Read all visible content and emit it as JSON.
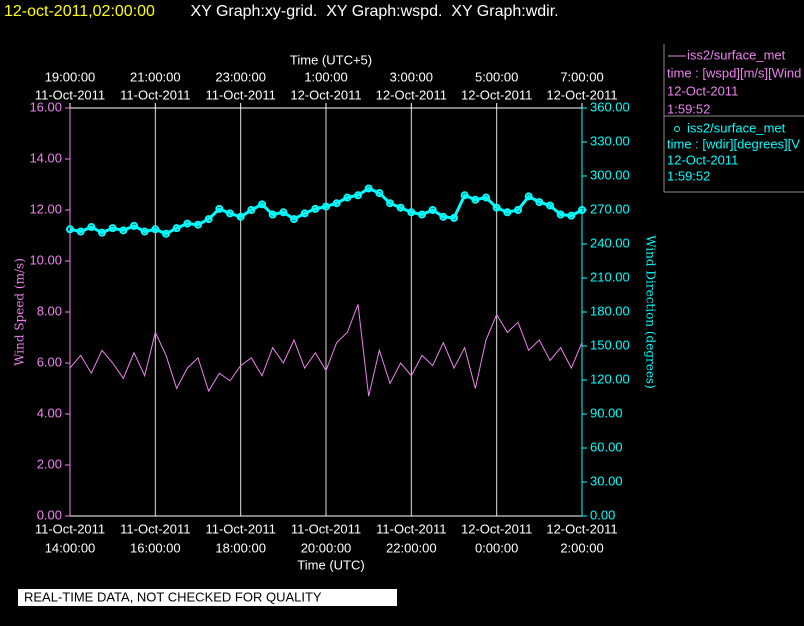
{
  "header": {
    "timestamp": "12-oct-2011,02:00:00",
    "graphs": " XY Graph:xy-grid.  XY Graph:wspd.  XY Graph:wdir."
  },
  "footer": "REAL-TIME DATA, NOT CHECKED FOR QUALITY",
  "chart_data": {
    "type": "line",
    "x_label": "Time (UTC)",
    "x2_label": "Time (UTC+5)",
    "y_label": "Wind Speed (m/s)",
    "y2_label": "Wind Direction (degrees)",
    "xlim": [
      "2011-10-11T14:00:00",
      "2011-10-12T02:00:00"
    ],
    "xticks": [
      {
        "value": "2011-10-11T14:00:00",
        "label": [
          "11-Oct-2011",
          "14:00:00"
        ]
      },
      {
        "value": "2011-10-11T16:00:00",
        "label": [
          "11-Oct-2011",
          "16:00:00"
        ]
      },
      {
        "value": "2011-10-11T18:00:00",
        "label": [
          "11-Oct-2011",
          "18:00:00"
        ]
      },
      {
        "value": "2011-10-11T20:00:00",
        "label": [
          "11-Oct-2011",
          "20:00:00"
        ]
      },
      {
        "value": "2011-10-11T22:00:00",
        "label": [
          "11-Oct-2011",
          "22:00:00"
        ]
      },
      {
        "value": "2011-10-12T00:00:00",
        "label": [
          "12-Oct-2011",
          "0:00:00"
        ]
      },
      {
        "value": "2011-10-12T02:00:00",
        "label": [
          "12-Oct-2011",
          "2:00:00"
        ]
      }
    ],
    "x2ticks": [
      {
        "value": "2011-10-11T14:00:00",
        "label": [
          "11-Oct-2011",
          "19:00:00"
        ]
      },
      {
        "value": "2011-10-11T16:00:00",
        "label": [
          "11-Oct-2011",
          "21:00:00"
        ]
      },
      {
        "value": "2011-10-11T18:00:00",
        "label": [
          "11-Oct-2011",
          "23:00:00"
        ]
      },
      {
        "value": "2011-10-11T20:00:00",
        "label": [
          "12-Oct-2011",
          "1:00:00"
        ]
      },
      {
        "value": "2011-10-11T22:00:00",
        "label": [
          "12-Oct-2011",
          "3:00:00"
        ]
      },
      {
        "value": "2011-10-12T00:00:00",
        "label": [
          "12-Oct-2011",
          "5:00:00"
        ]
      },
      {
        "value": "2011-10-12T02:00:00",
        "label": [
          "12-Oct-2011",
          "7:00:00"
        ]
      }
    ],
    "ylim": [
      0,
      16
    ],
    "yticks": [
      {
        "value": 0,
        "label": "0.00"
      },
      {
        "value": 2,
        "label": "2.00"
      },
      {
        "value": 4,
        "label": "4.00"
      },
      {
        "value": 6,
        "label": "6.00"
      },
      {
        "value": 8,
        "label": "8.00"
      },
      {
        "value": 10,
        "label": "10.00"
      },
      {
        "value": 12,
        "label": "12.00"
      },
      {
        "value": 14,
        "label": "14.00"
      },
      {
        "value": 16,
        "label": "16.00"
      }
    ],
    "y2lim": [
      0,
      360
    ],
    "y2ticks": [
      {
        "value": 0,
        "label": "0.00"
      },
      {
        "value": 30,
        "label": "30.00"
      },
      {
        "value": 60,
        "label": "60.00"
      },
      {
        "value": 90,
        "label": "90.00"
      },
      {
        "value": 120,
        "label": "120.00"
      },
      {
        "value": 150,
        "label": "150.00"
      },
      {
        "value": 180,
        "label": "180.00"
      },
      {
        "value": 210,
        "label": "210.00"
      },
      {
        "value": 240,
        "label": "240.00"
      },
      {
        "value": 270,
        "label": "270.00"
      },
      {
        "value": 300,
        "label": "300.00"
      },
      {
        "value": 330,
        "label": "330.00"
      },
      {
        "value": 360,
        "label": "360.00"
      }
    ],
    "grid": true,
    "x": [
      "2011-10-11T14:00:00",
      "2011-10-11T14:15:00",
      "2011-10-11T14:30:00",
      "2011-10-11T14:45:00",
      "2011-10-11T15:00:00",
      "2011-10-11T15:15:00",
      "2011-10-11T15:30:00",
      "2011-10-11T15:45:00",
      "2011-10-11T16:00:00",
      "2011-10-11T16:15:00",
      "2011-10-11T16:30:00",
      "2011-10-11T16:45:00",
      "2011-10-11T17:00:00",
      "2011-10-11T17:15:00",
      "2011-10-11T17:30:00",
      "2011-10-11T17:45:00",
      "2011-10-11T18:00:00",
      "2011-10-11T18:15:00",
      "2011-10-11T18:30:00",
      "2011-10-11T18:45:00",
      "2011-10-11T19:00:00",
      "2011-10-11T19:15:00",
      "2011-10-11T19:30:00",
      "2011-10-11T19:45:00",
      "2011-10-11T20:00:00",
      "2011-10-11T20:15:00",
      "2011-10-11T20:30:00",
      "2011-10-11T20:45:00",
      "2011-10-11T21:00:00",
      "2011-10-11T21:15:00",
      "2011-10-11T21:30:00",
      "2011-10-11T21:45:00",
      "2011-10-11T22:00:00",
      "2011-10-11T22:15:00",
      "2011-10-11T22:30:00",
      "2011-10-11T22:45:00",
      "2011-10-11T23:00:00",
      "2011-10-11T23:15:00",
      "2011-10-11T23:30:00",
      "2011-10-11T23:45:00",
      "2011-10-12T00:00:00",
      "2011-10-12T00:15:00",
      "2011-10-12T00:30:00",
      "2011-10-12T00:45:00",
      "2011-10-12T01:00:00",
      "2011-10-12T01:15:00",
      "2011-10-12T01:30:00",
      "2011-10-12T01:45:00",
      "2011-10-12T02:00:00"
    ],
    "series": [
      {
        "name": "iss2/surface_met",
        "description": [
          "time : [wspd][m/s][Wind",
          "12-Oct-2011",
          "1:59:52"
        ],
        "color": "#ee82ee",
        "marker": "line",
        "values": [
          5.8,
          6.3,
          5.6,
          6.5,
          6.0,
          5.4,
          6.4,
          5.5,
          7.2,
          6.3,
          5.0,
          5.8,
          6.2,
          4.9,
          5.6,
          5.3,
          5.9,
          6.2,
          5.5,
          6.6,
          6.0,
          6.9,
          5.8,
          6.4,
          5.7,
          6.8,
          7.2,
          8.3,
          4.7,
          6.5,
          5.2,
          6.0,
          5.5,
          6.3,
          5.9,
          6.8,
          5.8,
          6.6,
          5.0,
          6.9,
          7.9,
          7.2,
          7.6,
          6.5,
          6.9,
          6.1,
          6.6,
          5.8,
          6.8
        ]
      },
      {
        "name": "iss2/surface_met",
        "description": [
          "time : [wdir][degrees][V",
          "12-Oct-2011",
          "1:59:52"
        ],
        "color": "#00ffff",
        "marker": "circle",
        "axis": "y2",
        "values": [
          253,
          251,
          255,
          250,
          254,
          252,
          256,
          251,
          253,
          249,
          254,
          258,
          257,
          262,
          271,
          267,
          264,
          270,
          275,
          266,
          268,
          262,
          267,
          271,
          273,
          276,
          281,
          283,
          289,
          285,
          276,
          272,
          268,
          266,
          270,
          264,
          263,
          283,
          279,
          281,
          272,
          268,
          270,
          282,
          277,
          274,
          266,
          265,
          270
        ]
      }
    ]
  }
}
